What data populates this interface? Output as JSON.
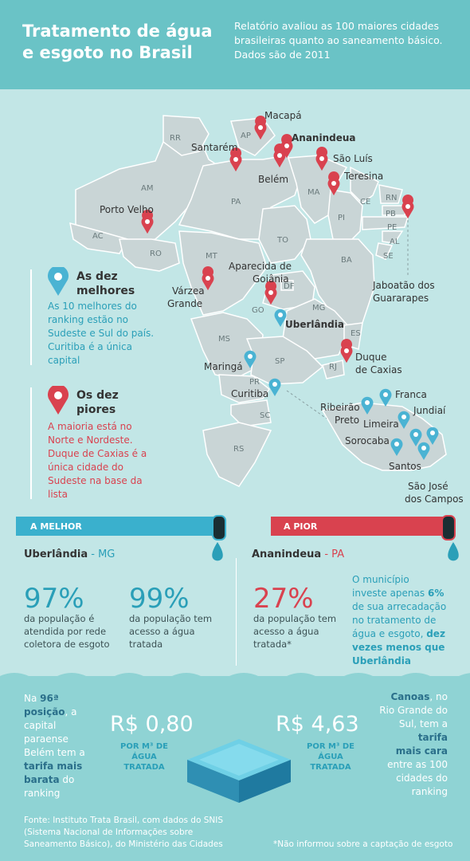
{
  "header": {
    "title_line1": "Tratamento de água",
    "title_line2": "e esgoto no Brasil",
    "subtitle": "Relatório avaliou as 100 maiores cidades brasileiras quanto ao saneamento básico. Dados são de 2011"
  },
  "colors": {
    "teal": "#2a9fb8",
    "red": "#d9424f",
    "map_fill": "#c9d5d6",
    "background": "#c2e6e6",
    "header": "#6ac3c6"
  },
  "states": [
    "RR",
    "AP",
    "AM",
    "PA",
    "MA",
    "CE",
    "RN",
    "PB",
    "PE",
    "AL",
    "SE",
    "PI",
    "AC",
    "RO",
    "TO",
    "BA",
    "MT",
    "DF",
    "GO",
    "MG",
    "ES",
    "MS",
    "SP",
    "RJ",
    "PR",
    "SC",
    "RS"
  ],
  "cities": {
    "macapa": "Macapá",
    "ananindeua": "Ananindeua",
    "santarem": "Santarém",
    "belem": "Belém",
    "sao_luis": "São Luís",
    "teresina": "Teresina",
    "porto_velho": "Porto Velho",
    "jaboatao": [
      "Jaboatão dos",
      "Guararapes"
    ],
    "aparecida": [
      "Aparecida de",
      "Goiânia"
    ],
    "varzea": [
      "Várzea",
      "Grande"
    ],
    "uberlandia": "Uberlândia",
    "maringa": "Maringá",
    "curitiba": "Curitiba",
    "duque": [
      "Duque",
      "de Caxias"
    ],
    "franca": "Franca",
    "ribeirao": [
      "Ribeirão",
      "Preto"
    ],
    "jundiai": "Jundiaí",
    "limeira": "Limeira",
    "sorocaba": "Sorocaba",
    "santos": "Santos",
    "sao_jose": [
      "São José",
      "dos Campos"
    ]
  },
  "legend": {
    "best_title": [
      "As dez",
      "melhores"
    ],
    "best_text": [
      "As 10 melhores do",
      "ranking estão no",
      "Sudeste e Sul do país.",
      "Curitiba é a única",
      "capital"
    ],
    "worst_title": [
      "Os dez",
      "piores"
    ],
    "worst_text": [
      "A maioria está no",
      "Norte e Nordeste.",
      "Duque de Caxias é a",
      "única cidade do",
      "Sudeste na base da",
      "lista"
    ]
  },
  "best": {
    "label": "A MELHOR",
    "city": "Uberlândia",
    "state": "- MG",
    "stat1_value": "97%",
    "stat1_text": [
      "da população é",
      "atendida por rede",
      "coletora de esgoto"
    ],
    "stat2_value": "99%",
    "stat2_text": [
      "da população tem",
      "acesso a água",
      "tratada"
    ]
  },
  "worst": {
    "label": "A PIOR",
    "city": "Ananindeua",
    "state": "- PA",
    "stat_value": "27%",
    "stat_text": [
      "da população tem",
      "acesso a água",
      "tratada*"
    ],
    "invest_parts": [
      "O município",
      "investe apenas ",
      "6%",
      "de sua arrecadação",
      "no tratamento de",
      "água e esgoto, ",
      "dez",
      "vezes menos que",
      "Uberlândia"
    ]
  },
  "prices": {
    "cheap": "R$ 0,80",
    "expensive": "R$ 4,63",
    "unit": [
      "POR M³ DE",
      "ÁGUA",
      "TRATADA"
    ],
    "belem_parts": [
      "Na ",
      "96ª",
      "posição",
      ", a",
      "capital",
      "paraense",
      "Belém tem a",
      "tarifa mais",
      "barata",
      " do",
      "ranking"
    ],
    "canoas_parts": [
      "Canoas",
      ", no",
      "Rio Grande do",
      "Sul, tem a",
      "tarifa",
      "mais cara",
      "entre as 100",
      "cidades do",
      "ranking"
    ]
  },
  "footer": {
    "source": [
      "Fonte: Instituto Trata Brasil, com dados do SNIS",
      "(Sistema Nacional de Informações sobre",
      "Saneamento Básico), do Ministério das Cidades"
    ],
    "note": "*Não informou sobre a captação de esgoto"
  }
}
